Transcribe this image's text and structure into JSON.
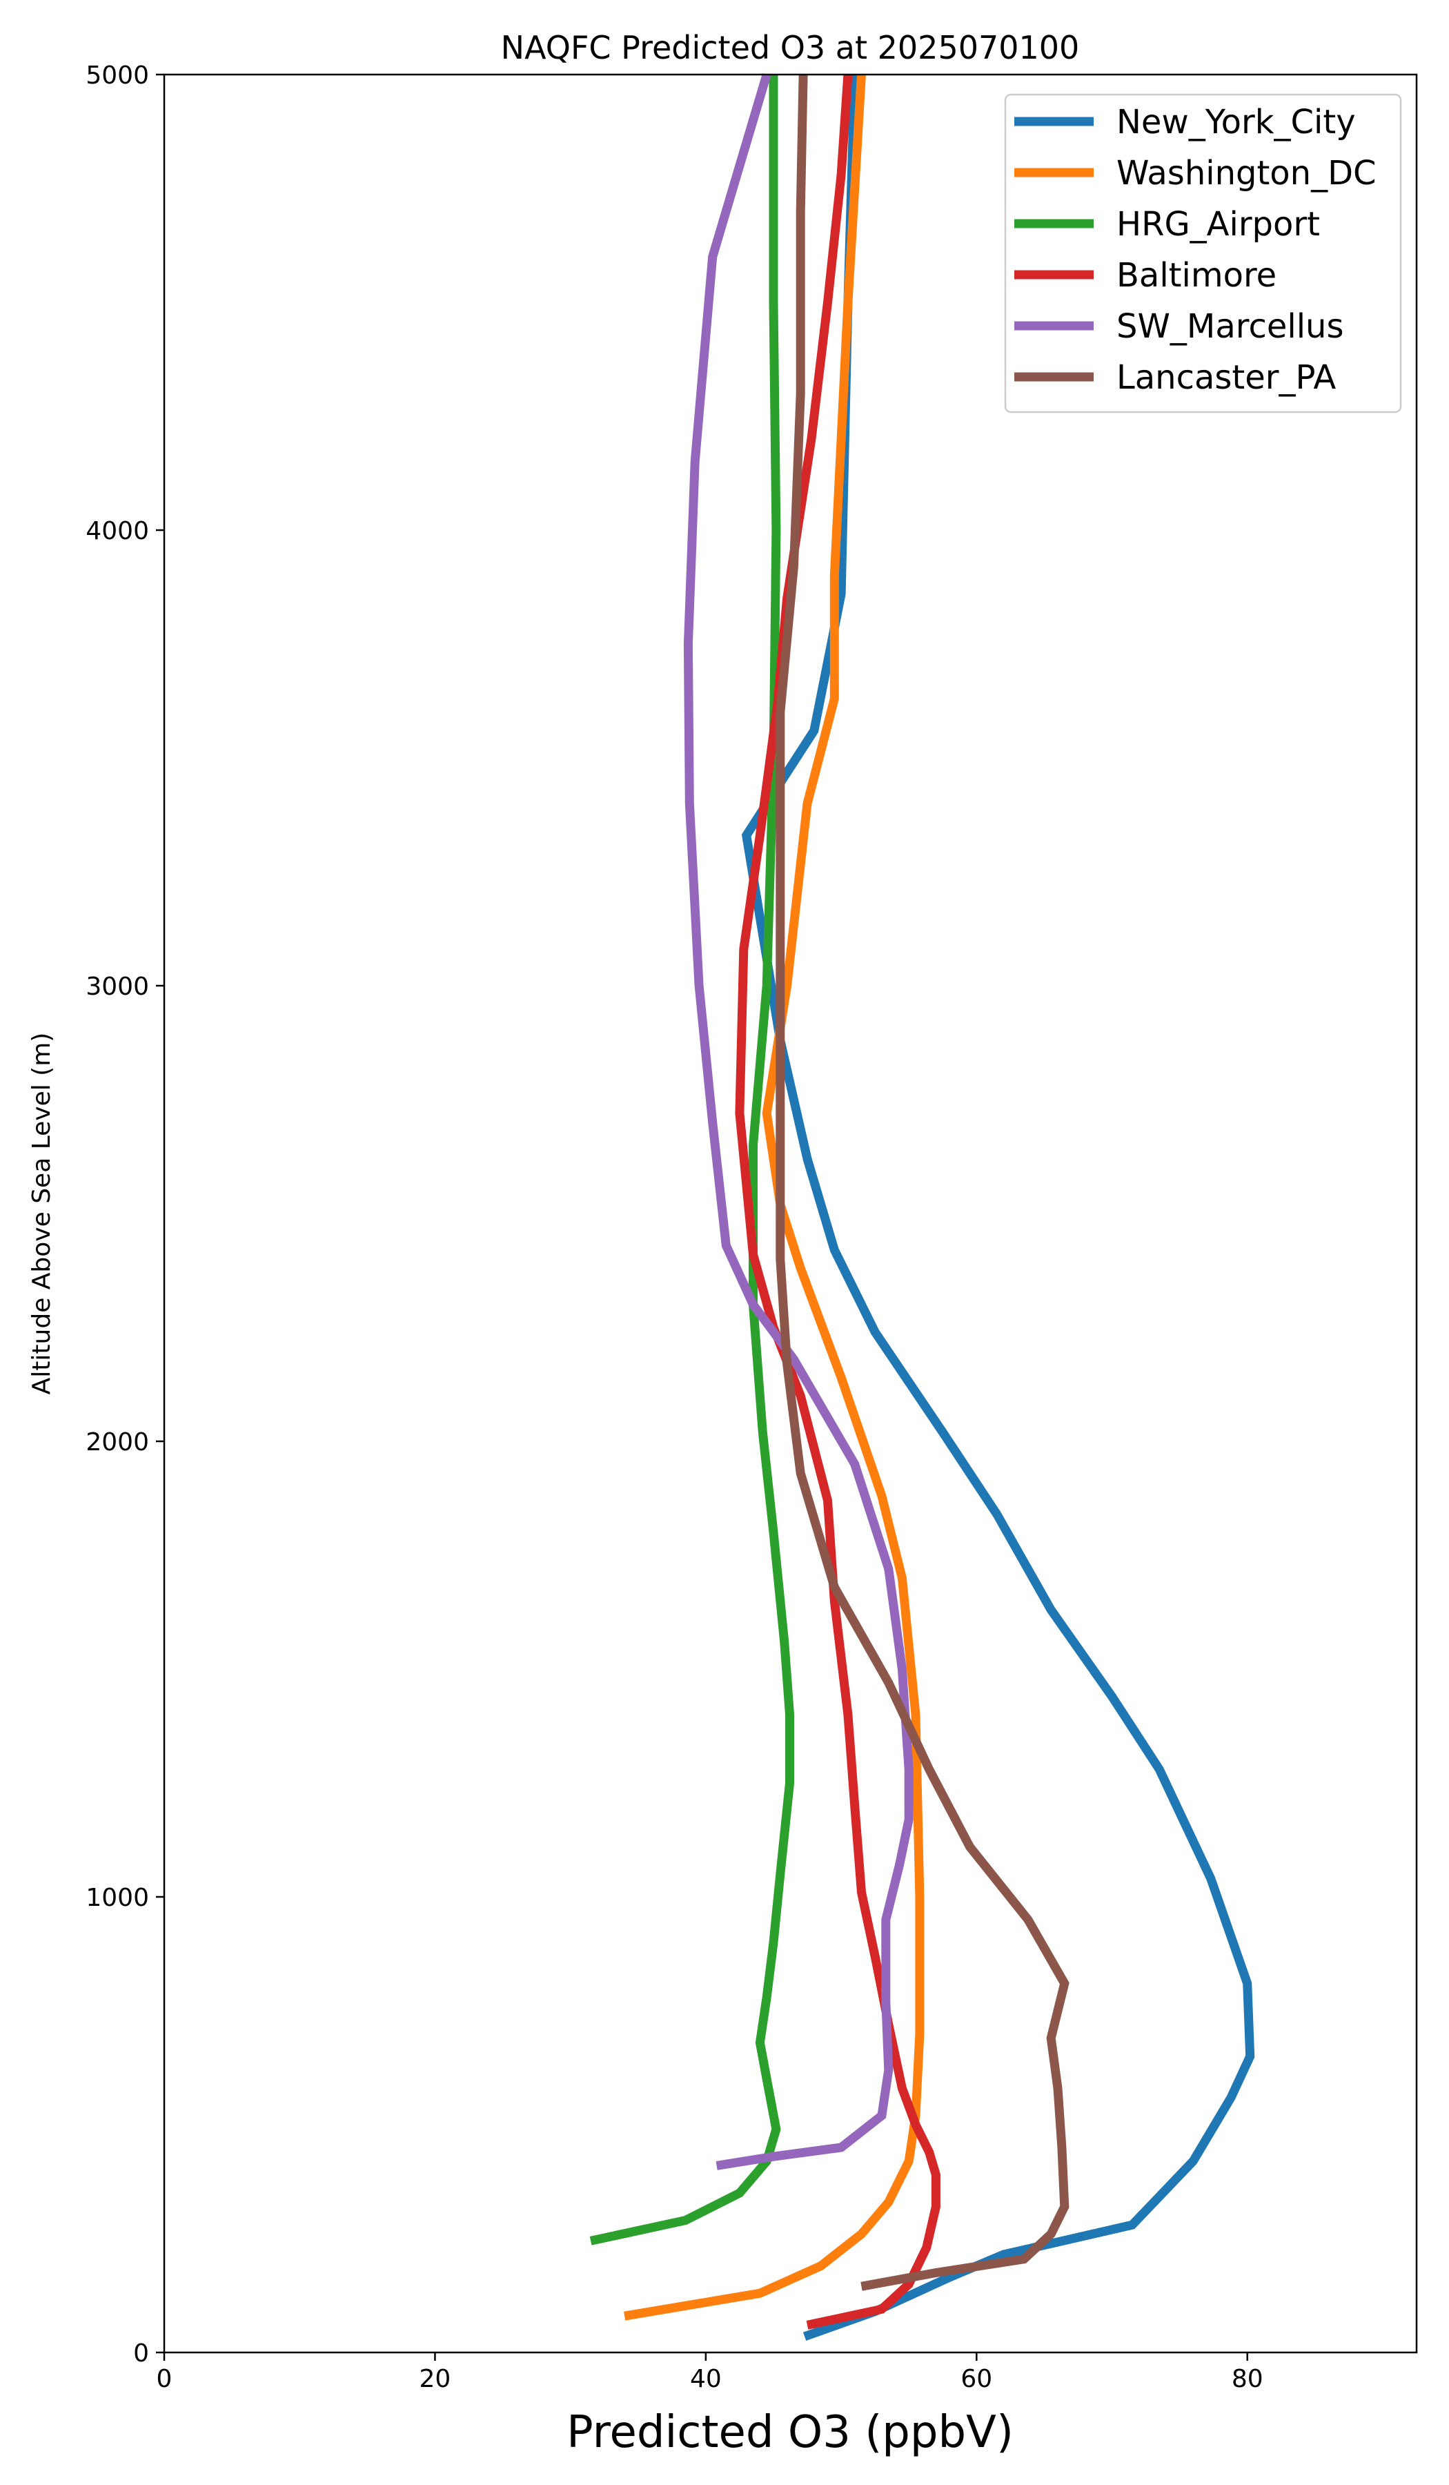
{
  "chart_data": {
    "type": "line",
    "title": "NAQFC Predicted O3 at 2025070100",
    "xlabel": "Predicted O3 (ppbV)",
    "ylabel": "Altitude Above Sea Level (m)",
    "xlim": [
      0,
      92.5
    ],
    "ylim": [
      0,
      5000
    ],
    "xticks": [
      0,
      20,
      40,
      60,
      80
    ],
    "yticks": [
      0,
      1000,
      2000,
      3000,
      4000,
      5000
    ],
    "grid": false,
    "legend_position": "top-right",
    "series": [
      {
        "name": "New_York_City",
        "color": "#1f77b4",
        "points": [
          [
            47.3,
            35
          ],
          [
            52.5,
            90
          ],
          [
            58,
            165
          ],
          [
            62,
            215
          ],
          [
            71.5,
            280
          ],
          [
            76,
            420
          ],
          [
            78.8,
            560
          ],
          [
            80.2,
            650
          ],
          [
            80,
            810
          ],
          [
            77.3,
            1040
          ],
          [
            73.5,
            1280
          ],
          [
            70,
            1440
          ],
          [
            65.5,
            1630
          ],
          [
            61.5,
            1840
          ],
          [
            57.5,
            2020
          ],
          [
            52.5,
            2240
          ],
          [
            49.5,
            2420
          ],
          [
            47.5,
            2620
          ],
          [
            45.5,
            2880
          ],
          [
            44.5,
            3060
          ],
          [
            43,
            3330
          ],
          [
            48,
            3560
          ],
          [
            50,
            3860
          ],
          [
            50.5,
            4500
          ],
          [
            51,
            5000
          ]
        ]
      },
      {
        "name": "Washington_DC",
        "color": "#ff7f0e",
        "points": [
          [
            34,
            80
          ],
          [
            44,
            130
          ],
          [
            48.5,
            190
          ],
          [
            51.5,
            260
          ],
          [
            53.5,
            330
          ],
          [
            55,
            420
          ],
          [
            55.5,
            520
          ],
          [
            55.8,
            700
          ],
          [
            55.8,
            1000
          ],
          [
            55.5,
            1400
          ],
          [
            54.5,
            1700
          ],
          [
            53,
            1880
          ],
          [
            50,
            2140
          ],
          [
            47,
            2380
          ],
          [
            45.5,
            2520
          ],
          [
            44.5,
            2720
          ],
          [
            46,
            3000
          ],
          [
            47.5,
            3400
          ],
          [
            49.5,
            3630
          ],
          [
            49.5,
            3900
          ],
          [
            50.5,
            4500
          ],
          [
            51.5,
            5000
          ]
        ]
      },
      {
        "name": "HRG_Airport",
        "color": "#2ca02c",
        "points": [
          [
            31.5,
            245
          ],
          [
            38.5,
            290
          ],
          [
            42.5,
            350
          ],
          [
            44.5,
            420
          ],
          [
            45.2,
            490
          ],
          [
            44.5,
            600
          ],
          [
            44,
            680
          ],
          [
            44.5,
            780
          ],
          [
            45,
            900
          ],
          [
            45.5,
            1050
          ],
          [
            46.2,
            1250
          ],
          [
            46.2,
            1400
          ],
          [
            45.8,
            1560
          ],
          [
            45,
            1800
          ],
          [
            44.2,
            2020
          ],
          [
            43.5,
            2300
          ],
          [
            43.5,
            2650
          ],
          [
            44.5,
            3000
          ],
          [
            45,
            3500
          ],
          [
            45.2,
            4000
          ],
          [
            45,
            4500
          ],
          [
            45,
            5000
          ]
        ]
      },
      {
        "name": "Baltimore",
        "color": "#d62728",
        "points": [
          [
            47.5,
            60
          ],
          [
            53,
            95
          ],
          [
            55,
            150
          ],
          [
            56.3,
            230
          ],
          [
            57,
            320
          ],
          [
            57,
            390
          ],
          [
            56.5,
            440
          ],
          [
            55.5,
            500
          ],
          [
            54.5,
            580
          ],
          [
            53.5,
            720
          ],
          [
            52.5,
            870
          ],
          [
            51.5,
            1010
          ],
          [
            51,
            1200
          ],
          [
            50.5,
            1400
          ],
          [
            49.5,
            1650
          ],
          [
            49,
            1870
          ],
          [
            47,
            2100
          ],
          [
            45,
            2250
          ],
          [
            43.5,
            2410
          ],
          [
            42.5,
            2720
          ],
          [
            42.8,
            3080
          ],
          [
            44,
            3330
          ],
          [
            45.3,
            3620
          ],
          [
            46,
            3850
          ],
          [
            47.8,
            4200
          ],
          [
            49,
            4500
          ],
          [
            50,
            4780
          ],
          [
            50.5,
            5000
          ]
        ]
      },
      {
        "name": "SW_Marcellus",
        "color": "#9467bd",
        "points": [
          [
            40.8,
            410
          ],
          [
            45,
            430
          ],
          [
            50,
            450
          ],
          [
            53,
            520
          ],
          [
            53.5,
            620
          ],
          [
            53.3,
            770
          ],
          [
            53.3,
            950
          ],
          [
            54.3,
            1070
          ],
          [
            55,
            1170
          ],
          [
            55,
            1280
          ],
          [
            54.5,
            1500
          ],
          [
            53.5,
            1720
          ],
          [
            51,
            1950
          ],
          [
            46.5,
            2180
          ],
          [
            43.5,
            2300
          ],
          [
            41.5,
            2430
          ],
          [
            40.5,
            2700
          ],
          [
            39.5,
            3000
          ],
          [
            38.8,
            3400
          ],
          [
            38.7,
            3750
          ],
          [
            39.2,
            4150
          ],
          [
            40.5,
            4600
          ],
          [
            42.5,
            4800
          ],
          [
            44.5,
            5000
          ]
        ]
      },
      {
        "name": "Lancaster_PA",
        "color": "#8c564b",
        "points": [
          [
            51.5,
            145
          ],
          [
            57,
            175
          ],
          [
            63.5,
            205
          ],
          [
            65.5,
            260
          ],
          [
            66.5,
            320
          ],
          [
            66.3,
            450
          ],
          [
            66,
            580
          ],
          [
            65.5,
            690
          ],
          [
            66.5,
            810
          ],
          [
            63.8,
            950
          ],
          [
            59.5,
            1110
          ],
          [
            56.5,
            1280
          ],
          [
            53.5,
            1470
          ],
          [
            49.5,
            1680
          ],
          [
            47,
            1930
          ],
          [
            46,
            2170
          ],
          [
            45.5,
            2400
          ],
          [
            45.5,
            3000
          ],
          [
            45.5,
            3600
          ],
          [
            46.5,
            3920
          ],
          [
            47,
            4300
          ],
          [
            47,
            4700
          ],
          [
            47.2,
            5000
          ]
        ]
      }
    ]
  }
}
